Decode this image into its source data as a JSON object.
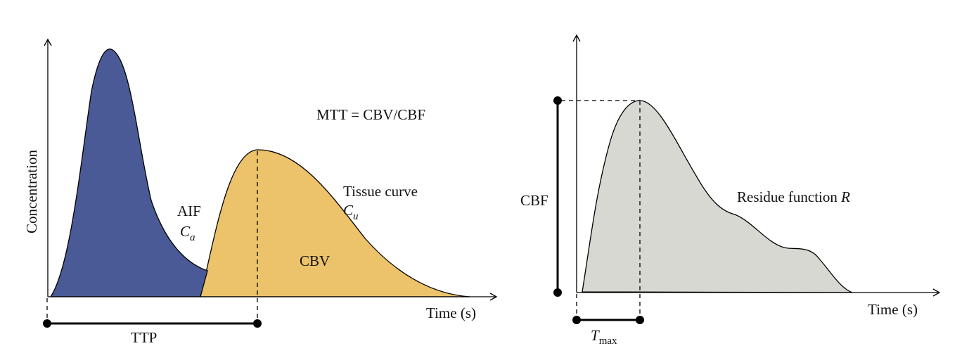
{
  "left_panel": {
    "y_axis_label": "Concentration",
    "x_axis_label": "Time (s)",
    "equation": "MTT = CBV/CBF",
    "aif_label": "AIF",
    "aif_symbol_base": "C",
    "aif_symbol_sub": "a",
    "tissue_label": "Tissue curve",
    "tissue_symbol_base": "C",
    "tissue_symbol_sub": "u",
    "area_label": "CBV",
    "ttp_label": "TTP",
    "colors": {
      "aif_fill": "#4a5a96",
      "tissue_fill": "#ecc26b"
    }
  },
  "right_panel": {
    "x_axis_label": "Time (s)",
    "cbf_label": "CBF",
    "residue_label": "Residue function ",
    "residue_symbol": "R",
    "tmax_base": "T",
    "tmax_sub": "max",
    "colors": {
      "residue_fill": "#d8d8d3"
    }
  }
}
